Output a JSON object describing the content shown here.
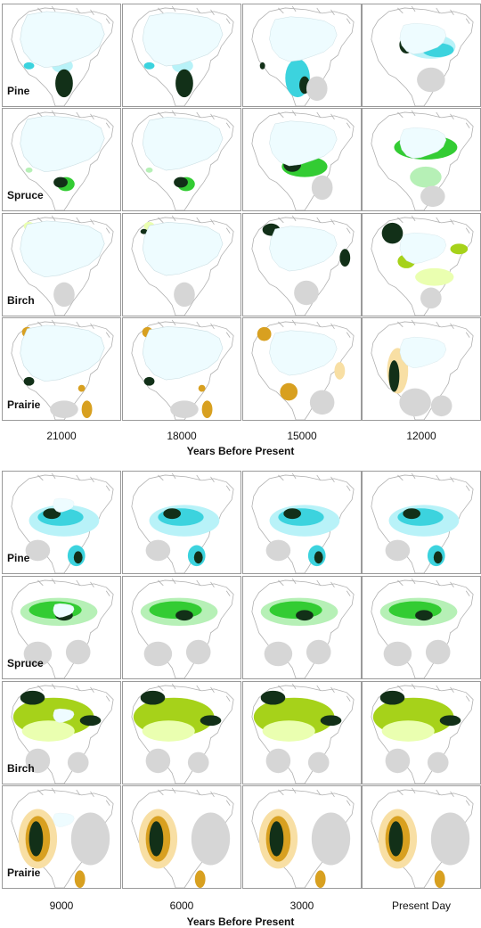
{
  "colors": {
    "ice": "#eefcff",
    "land": "#ffffff",
    "border": "#9a9a9a",
    "grey": "#d6d6d6",
    "dark": "#123018",
    "pine": [
      "#b8f2f8",
      "#3cd3de"
    ],
    "spruce": [
      "#b6f0b6",
      "#33cc33"
    ],
    "birch": [
      "#eaffb0",
      "#a6d21a"
    ],
    "prairie": [
      "#f8dfa4",
      "#d8a020"
    ]
  },
  "rows": [
    {
      "key": "pine",
      "label": "Pine"
    },
    {
      "key": "spruce",
      "label": "Spruce"
    },
    {
      "key": "birch",
      "label": "Birch"
    },
    {
      "key": "prairie",
      "label": "Prairie"
    }
  ],
  "blocks": [
    {
      "columns": [
        "21000",
        "18000",
        "15000",
        "12000"
      ],
      "axis_title": "Years Before Present",
      "ice": [
        1.0,
        0.95,
        0.8,
        0.55
      ]
    },
    {
      "columns": [
        "9000",
        "6000",
        "3000",
        "Present Day"
      ],
      "axis_title": "Years Before Present",
      "ice": [
        0.25,
        0.0,
        0.0,
        0.0
      ]
    }
  ]
}
